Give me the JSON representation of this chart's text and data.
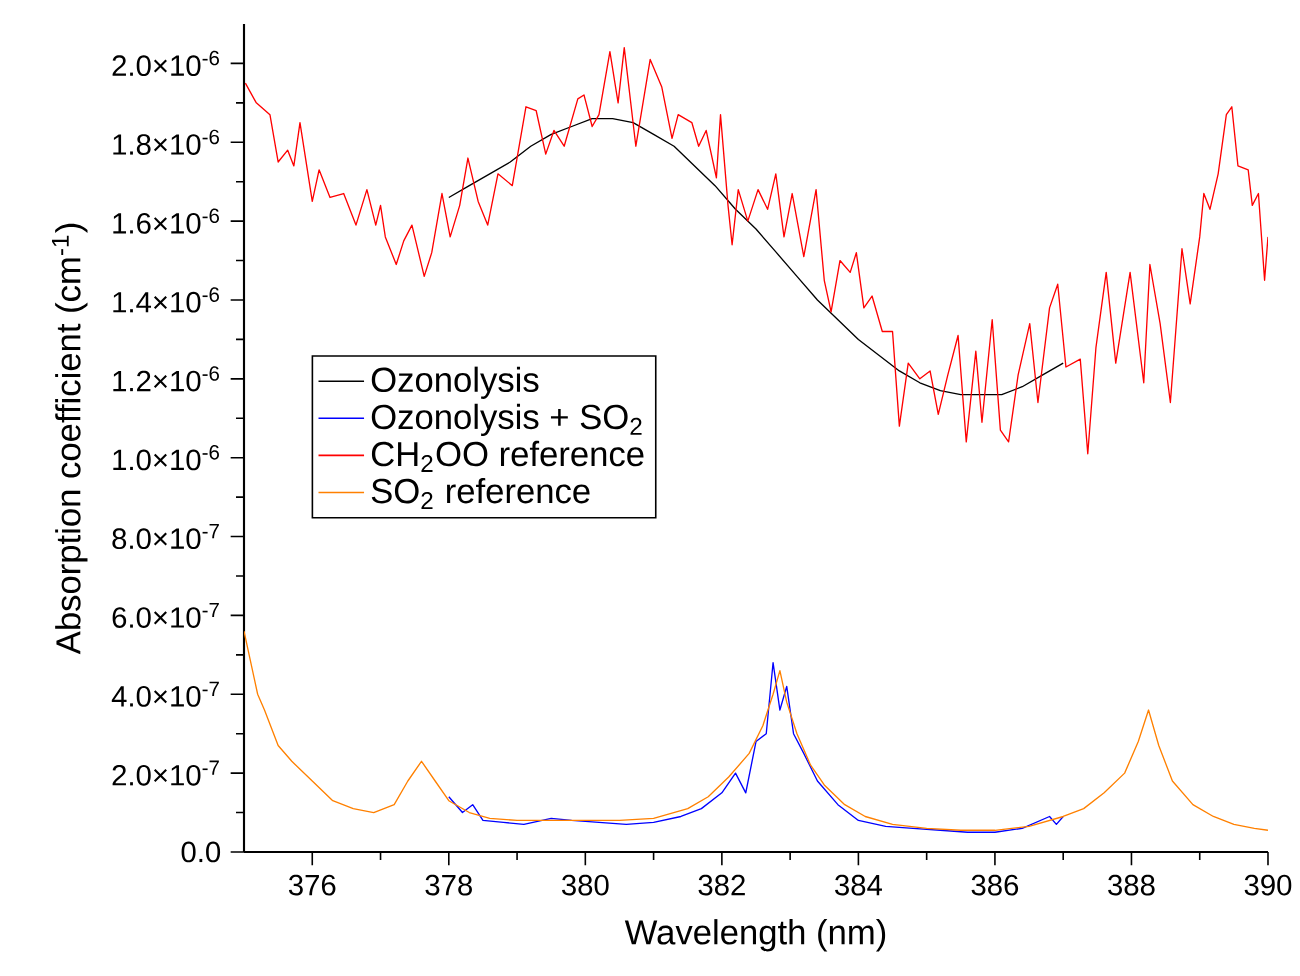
{
  "chart_data": {
    "type": "line",
    "xlabel": "Wavelength (nm)",
    "ylabel": "Absorption coefficient (cm$^{-1}$)",
    "xlim": [
      375,
      390
    ],
    "xticks": [
      376,
      378,
      380,
      382,
      384,
      386,
      388,
      390
    ],
    "ylim": [
      0,
      2.1e-06
    ],
    "yticks": [
      {
        "value": 0,
        "label": "0.0"
      },
      {
        "value": 2e-07,
        "label": "2.0×10$^{-7}$"
      },
      {
        "value": 4e-07,
        "label": "4.0×10$^{-7}$"
      },
      {
        "value": 6e-07,
        "label": "6.0×10$^{-7}$"
      },
      {
        "value": 8e-07,
        "label": "8.0×10$^{-7}$"
      },
      {
        "value": 1e-06,
        "label": "1.0×10$^{-6}$"
      },
      {
        "value": 1.2e-06,
        "label": "1.2×10$^{-6}$"
      },
      {
        "value": 1.4e-06,
        "label": "1.4×10$^{-6}$"
      },
      {
        "value": 1.6e-06,
        "label": "1.6×10$^{-6}$"
      },
      {
        "value": 1.8e-06,
        "label": "1.8×10$^{-6}$"
      },
      {
        "value": 2e-06,
        "label": "2.0×10$^{-6}$"
      }
    ],
    "legend": "left",
    "series": [
      {
        "name": "Ozonolysis",
        "color": "#000000",
        "x": [
          378.0,
          378.3,
          378.6,
          378.9,
          379.2,
          379.5,
          379.8,
          380.1,
          380.4,
          380.7,
          381.0,
          381.3,
          381.6,
          381.9,
          382.2,
          382.5,
          382.8,
          383.1,
          383.4,
          383.7,
          384.0,
          384.3,
          384.6,
          384.9,
          385.2,
          385.5,
          385.8,
          386.1,
          386.4,
          386.7,
          387.0
        ],
        "values": [
          1.66e-06,
          1.69e-06,
          1.72e-06,
          1.75e-06,
          1.79e-06,
          1.82e-06,
          1.84e-06,
          1.86e-06,
          1.86e-06,
          1.85e-06,
          1.82e-06,
          1.79e-06,
          1.74e-06,
          1.69e-06,
          1.63e-06,
          1.58e-06,
          1.52e-06,
          1.46e-06,
          1.4e-06,
          1.35e-06,
          1.3e-06,
          1.26e-06,
          1.22e-06,
          1.19e-06,
          1.17e-06,
          1.16e-06,
          1.16e-06,
          1.16e-06,
          1.18e-06,
          1.21e-06,
          1.24e-06
        ]
      },
      {
        "name": "Ozonolysis + SO$_{2}$",
        "color": "#0000ff",
        "x": [
          378.0,
          378.2,
          378.35,
          378.5,
          378.8,
          379.1,
          379.5,
          379.8,
          380.2,
          380.6,
          381.0,
          381.4,
          381.7,
          382.0,
          382.2,
          382.35,
          382.5,
          382.65,
          382.75,
          382.85,
          382.95,
          383.05,
          383.2,
          383.4,
          383.7,
          384.0,
          384.4,
          384.8,
          385.2,
          385.6,
          386.0,
          386.4,
          386.8,
          386.9,
          387.0
        ],
        "values": [
          1.4e-07,
          1e-07,
          1.2e-07,
          8e-08,
          7.5e-08,
          7e-08,
          8.5e-08,
          8e-08,
          7.5e-08,
          7e-08,
          7.5e-08,
          9e-08,
          1.1e-07,
          1.5e-07,
          2e-07,
          1.5e-07,
          2.8e-07,
          3e-07,
          4.8e-07,
          3.6e-07,
          4.2e-07,
          3e-07,
          2.5e-07,
          1.8e-07,
          1.2e-07,
          8e-08,
          6.5e-08,
          6e-08,
          5.5e-08,
          5e-08,
          5e-08,
          6e-08,
          9e-08,
          7e-08,
          9e-08
        ]
      },
      {
        "name": "CH$_{2}$OO reference",
        "color": "#ff0000",
        "x": [
          375.02,
          375.18,
          375.38,
          375.5,
          375.64,
          375.73,
          375.82,
          376.0,
          376.1,
          376.26,
          376.46,
          376.64,
          376.8,
          376.93,
          377.0,
          377.07,
          377.23,
          377.34,
          377.46,
          377.64,
          377.75,
          377.9,
          378.02,
          378.16,
          378.28,
          378.43,
          378.57,
          378.72,
          378.93,
          379.13,
          379.28,
          379.42,
          379.54,
          379.69,
          379.89,
          379.98,
          380.1,
          380.2,
          380.36,
          380.48,
          380.57,
          380.74,
          380.95,
          381.12,
          381.27,
          381.36,
          381.56,
          381.66,
          381.77,
          381.92,
          381.98,
          382.09,
          382.15,
          382.24,
          382.38,
          382.53,
          382.67,
          382.79,
          382.91,
          383.03,
          383.2,
          383.38,
          383.5,
          383.6,
          383.73,
          383.88,
          383.97,
          384.08,
          384.2,
          384.35,
          384.5,
          384.6,
          384.73,
          384.9,
          385.05,
          385.17,
          385.31,
          385.46,
          385.58,
          385.72,
          385.81,
          385.96,
          386.08,
          386.2,
          386.34,
          386.51,
          386.63,
          386.8,
          386.92,
          387.04,
          387.25,
          387.36,
          387.48,
          387.63,
          387.77,
          387.98,
          388.18,
          388.27,
          388.42,
          388.57,
          388.74,
          388.86,
          389.0,
          389.06,
          389.15,
          389.27,
          389.39,
          389.47,
          389.56,
          389.71,
          389.77,
          389.86,
          389.95,
          390.0
        ],
        "values": [
          1.95e-06,
          1.9e-06,
          1.87e-06,
          1.75e-06,
          1.78e-06,
          1.74e-06,
          1.85e-06,
          1.65e-06,
          1.73e-06,
          1.66e-06,
          1.67e-06,
          1.59e-06,
          1.68e-06,
          1.59e-06,
          1.64e-06,
          1.56e-06,
          1.49e-06,
          1.55e-06,
          1.59e-06,
          1.46e-06,
          1.52e-06,
          1.67e-06,
          1.56e-06,
          1.64e-06,
          1.76e-06,
          1.65e-06,
          1.59e-06,
          1.72e-06,
          1.69e-06,
          1.89e-06,
          1.88e-06,
          1.77e-06,
          1.83e-06,
          1.79e-06,
          1.91e-06,
          1.92e-06,
          1.84e-06,
          1.87e-06,
          2.03e-06,
          1.9e-06,
          2.04e-06,
          1.79e-06,
          2.01e-06,
          1.94e-06,
          1.81e-06,
          1.87e-06,
          1.85e-06,
          1.79e-06,
          1.83e-06,
          1.71e-06,
          1.87e-06,
          1.64e-06,
          1.54e-06,
          1.68e-06,
          1.6e-06,
          1.68e-06,
          1.63e-06,
          1.72e-06,
          1.56e-06,
          1.67e-06,
          1.51e-06,
          1.68e-06,
          1.45e-06,
          1.37e-06,
          1.5e-06,
          1.47e-06,
          1.52e-06,
          1.38e-06,
          1.41e-06,
          1.32e-06,
          1.32e-06,
          1.08e-06,
          1.24e-06,
          1.2e-06,
          1.22e-06,
          1.11e-06,
          1.21e-06,
          1.31e-06,
          1.04e-06,
          1.27e-06,
          1.09e-06,
          1.35e-06,
          1.07e-06,
          1.04e-06,
          1.21e-06,
          1.34e-06,
          1.14e-06,
          1.38e-06,
          1.44e-06,
          1.23e-06,
          1.25e-06,
          1.01e-06,
          1.28e-06,
          1.47e-06,
          1.24e-06,
          1.47e-06,
          1.19e-06,
          1.49e-06,
          1.34e-06,
          1.14e-06,
          1.53e-06,
          1.39e-06,
          1.56e-06,
          1.67e-06,
          1.63e-06,
          1.72e-06,
          1.87e-06,
          1.89e-06,
          1.74e-06,
          1.73e-06,
          1.64e-06,
          1.67e-06,
          1.45e-06,
          1.56e-06
        ]
      },
      {
        "name": "SO$_{2}$ reference",
        "color": "#ff8000",
        "x": [
          375.0,
          375.1,
          375.2,
          375.3,
          375.5,
          375.7,
          376.0,
          376.3,
          376.6,
          376.9,
          377.2,
          377.4,
          377.6,
          377.8,
          378.0,
          378.3,
          378.6,
          379.0,
          379.5,
          380.0,
          380.5,
          381.0,
          381.5,
          381.8,
          382.1,
          382.4,
          382.6,
          382.75,
          382.85,
          382.95,
          383.1,
          383.3,
          383.5,
          383.8,
          384.1,
          384.5,
          385.0,
          385.5,
          386.0,
          386.5,
          387.0,
          387.3,
          387.6,
          387.9,
          388.1,
          388.25,
          388.4,
          388.6,
          388.9,
          389.2,
          389.5,
          389.8,
          390.0
        ],
        "values": [
          5.6e-07,
          4.8e-07,
          4e-07,
          3.6e-07,
          2.7e-07,
          2.3e-07,
          1.8e-07,
          1.3e-07,
          1.1e-07,
          1e-07,
          1.2e-07,
          1.8e-07,
          2.3e-07,
          1.8e-07,
          1.3e-07,
          1e-07,
          8.5e-08,
          8e-08,
          8e-08,
          8e-08,
          8e-08,
          8.5e-08,
          1.1e-07,
          1.4e-07,
          1.9e-07,
          2.5e-07,
          3.2e-07,
          4e-07,
          4.6e-07,
          3.8e-07,
          3e-07,
          2.2e-07,
          1.7e-07,
          1.2e-07,
          9e-08,
          7e-08,
          6e-08,
          5.5e-08,
          5.5e-08,
          6.5e-08,
          9e-08,
          1.1e-07,
          1.5e-07,
          2e-07,
          2.8e-07,
          3.6e-07,
          2.7e-07,
          1.8e-07,
          1.2e-07,
          9e-08,
          7e-08,
          6e-08,
          5.5e-08
        ]
      }
    ]
  }
}
